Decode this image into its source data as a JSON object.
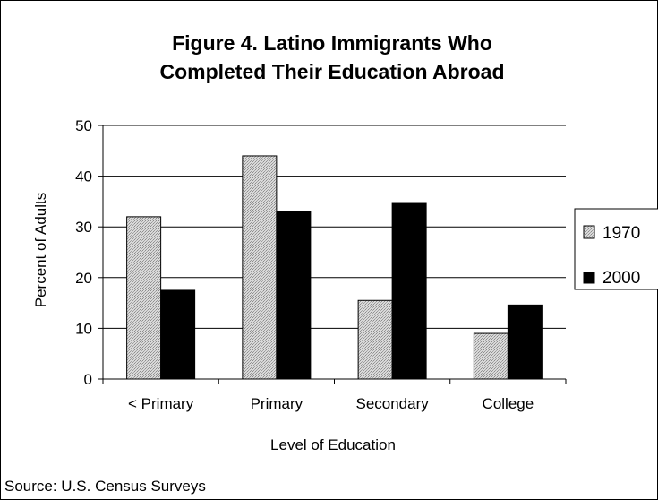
{
  "chart_data": {
    "type": "bar",
    "title_lines": [
      "Figure 4. Latino Immigrants Who",
      "Completed Their Education Abroad"
    ],
    "categories": [
      "< Primary",
      "Primary",
      "Secondary",
      "College"
    ],
    "series": [
      {
        "name": "1970",
        "values": [
          32,
          44,
          15.5,
          9
        ],
        "color": "#c8c8c8",
        "pattern": "gray-stipple"
      },
      {
        "name": "2000",
        "values": [
          17.5,
          33,
          34.8,
          14.6
        ],
        "color": "#000000"
      }
    ],
    "xlabel": "Level of Education",
    "ylabel": "Percent of Adults",
    "ylim": [
      0,
      50
    ],
    "yticks": [
      0,
      10,
      20,
      30,
      40,
      50
    ],
    "grid": true,
    "legend": "right",
    "source": "Source: U.S. Census Surveys"
  }
}
